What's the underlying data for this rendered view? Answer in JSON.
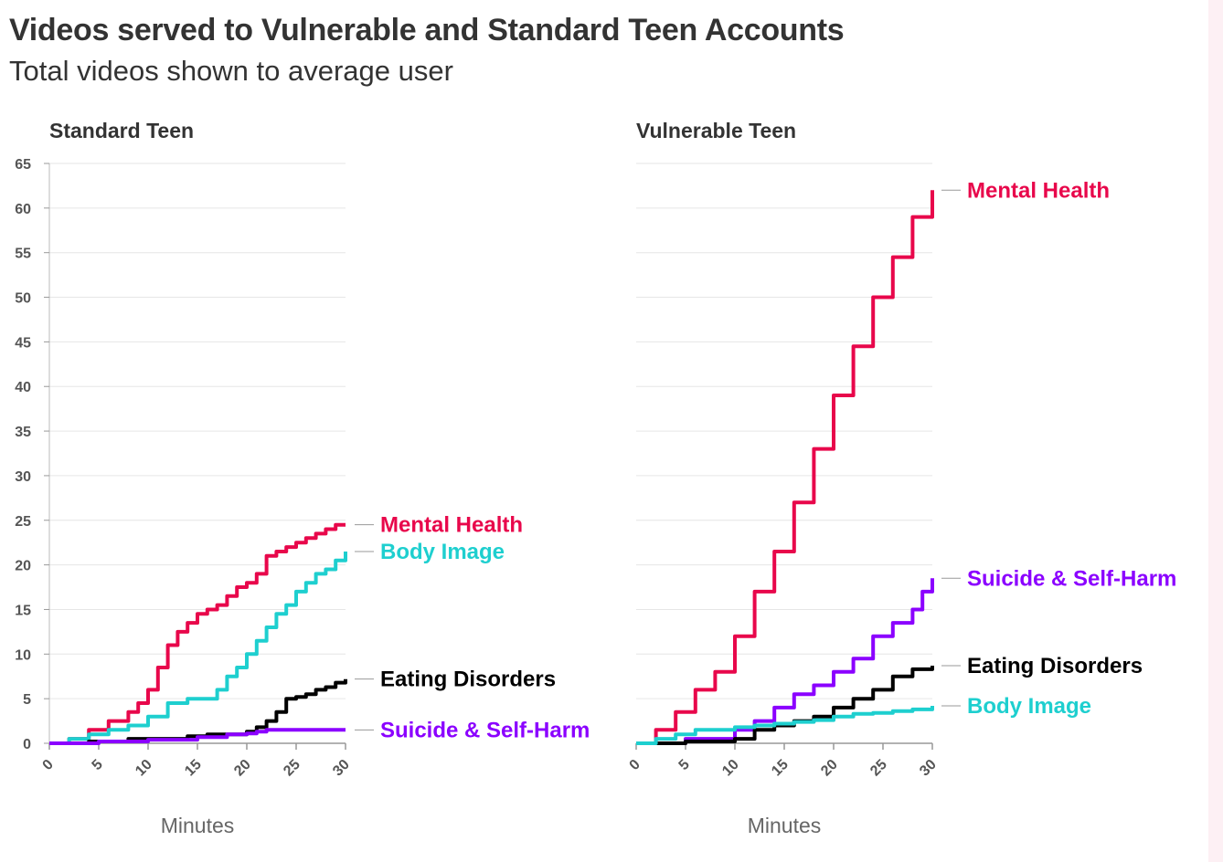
{
  "title": "Videos served to Vulnerable and Standard Teen Accounts",
  "subtitle": "Total videos shown to average user",
  "colors": {
    "mental_health": "#e8074b",
    "body_image": "#1ecfcf",
    "eating_disorders": "#000000",
    "suicide_self_harm": "#8b00ff"
  },
  "chart_data": [
    {
      "type": "line",
      "title": "Standard Teen",
      "xlabel": "Minutes",
      "ylabel": "",
      "xlim": [
        0,
        30
      ],
      "ylim": [
        0,
        65
      ],
      "x_ticks": [
        "0",
        "5",
        "10",
        "15",
        "20",
        "25",
        "30"
      ],
      "y_ticks": [
        "0",
        "5",
        "10",
        "15",
        "20",
        "25",
        "30",
        "35",
        "40",
        "45",
        "50",
        "55",
        "60",
        "65"
      ],
      "grid": true,
      "series": [
        {
          "name": "Mental Health",
          "color": "#e8074b",
          "x": [
            0,
            2,
            4,
            6,
            8,
            9,
            10,
            11,
            12,
            13,
            14,
            15,
            16,
            17,
            18,
            19,
            20,
            21,
            22,
            23,
            24,
            25,
            26,
            27,
            28,
            29,
            30
          ],
          "y": [
            0,
            0.5,
            1.5,
            2.5,
            3.5,
            4.5,
            6,
            8.5,
            11,
            12.5,
            13.5,
            14.5,
            15,
            15.5,
            16.5,
            17.5,
            18,
            19,
            21,
            21.5,
            22,
            22.5,
            23,
            23.5,
            24,
            24.5,
            24.5
          ]
        },
        {
          "name": "Body Image",
          "color": "#1ecfcf",
          "x": [
            0,
            2,
            4,
            6,
            8,
            10,
            12,
            14,
            16,
            17,
            18,
            19,
            20,
            21,
            22,
            23,
            24,
            25,
            26,
            27,
            28,
            29,
            30
          ],
          "y": [
            0,
            0.5,
            1,
            1.5,
            2,
            3,
            4.5,
            5,
            5,
            6,
            7.5,
            8.5,
            10,
            11.5,
            13,
            14.5,
            15.5,
            17,
            18,
            19,
            19.5,
            20.5,
            21.5
          ]
        },
        {
          "name": "Eating Disorders",
          "color": "#000000",
          "x": [
            0,
            4,
            8,
            12,
            14,
            16,
            18,
            20,
            21,
            22,
            23,
            24,
            25,
            26,
            27,
            28,
            29,
            30
          ],
          "y": [
            0,
            0.2,
            0.5,
            0.5,
            0.8,
            1,
            1,
            1.3,
            1.8,
            2.5,
            3.5,
            5,
            5.2,
            5.5,
            6,
            6.3,
            6.8,
            7.2
          ]
        },
        {
          "name": "Suicide & Self-Harm",
          "color": "#8b00ff",
          "x": [
            0,
            5,
            10,
            15,
            18,
            20,
            21,
            22,
            25,
            30
          ],
          "y": [
            0,
            0.2,
            0.4,
            0.7,
            1,
            1.1,
            1.3,
            1.5,
            1.5,
            1.5
          ]
        }
      ]
    },
    {
      "type": "line",
      "title": "Vulnerable Teen",
      "xlabel": "Minutes",
      "ylabel": "",
      "xlim": [
        0,
        30
      ],
      "ylim": [
        0,
        65
      ],
      "x_ticks": [
        "0",
        "5",
        "10",
        "15",
        "20",
        "25",
        "30"
      ],
      "grid": true,
      "series": [
        {
          "name": "Mental Health",
          "color": "#e8074b",
          "x": [
            0,
            2,
            4,
            6,
            8,
            10,
            12,
            14,
            16,
            18,
            20,
            22,
            24,
            26,
            28,
            30
          ],
          "y": [
            0,
            1.5,
            3.5,
            6,
            8,
            12,
            17,
            21.5,
            27,
            33,
            39,
            44.5,
            50,
            54.5,
            59,
            62
          ]
        },
        {
          "name": "Suicide & Self-Harm",
          "color": "#8b00ff",
          "x": [
            0,
            5,
            10,
            12,
            14,
            16,
            18,
            20,
            22,
            24,
            26,
            28,
            29,
            30
          ],
          "y": [
            0,
            0.5,
            1.5,
            2.5,
            4,
            5.5,
            6.5,
            8,
            9.5,
            12,
            13.5,
            15,
            17,
            18.5
          ]
        },
        {
          "name": "Eating Disorders",
          "color": "#000000",
          "x": [
            0,
            5,
            10,
            12,
            14,
            16,
            18,
            20,
            22,
            24,
            26,
            28,
            30
          ],
          "y": [
            0,
            0.2,
            0.5,
            1.5,
            2,
            2.5,
            3,
            4,
            5,
            6,
            7.5,
            8.3,
            8.7
          ]
        },
        {
          "name": "Body Image",
          "color": "#1ecfcf",
          "x": [
            0,
            2,
            4,
            6,
            8,
            10,
            12,
            14,
            16,
            18,
            20,
            22,
            24,
            26,
            28,
            30
          ],
          "y": [
            0,
            0.5,
            1,
            1.5,
            1.5,
            1.8,
            2,
            2.2,
            2.4,
            2.6,
            3,
            3.3,
            3.4,
            3.6,
            3.8,
            4.2
          ]
        }
      ]
    }
  ]
}
